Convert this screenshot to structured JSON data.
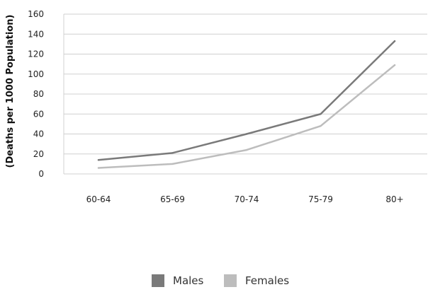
{
  "chart_data": {
    "type": "line",
    "title": "",
    "xlabel": "",
    "ylabel": "(Deaths per 1000 Population)",
    "categories": [
      "60-64",
      "65-69",
      "70-74",
      "75-79",
      "80+"
    ],
    "ylim": [
      0,
      160
    ],
    "yticks": [
      0,
      20,
      40,
      60,
      80,
      100,
      120,
      140,
      160
    ],
    "grid": true,
    "legend_position": "bottom-center",
    "series": [
      {
        "name": "Males",
        "values": [
          14,
          21,
          40,
          60,
          133
        ],
        "color": "#7a7a7a"
      },
      {
        "name": "Females",
        "values": [
          6,
          10,
          24,
          48,
          109
        ],
        "color": "#bdbdbd"
      }
    ]
  }
}
